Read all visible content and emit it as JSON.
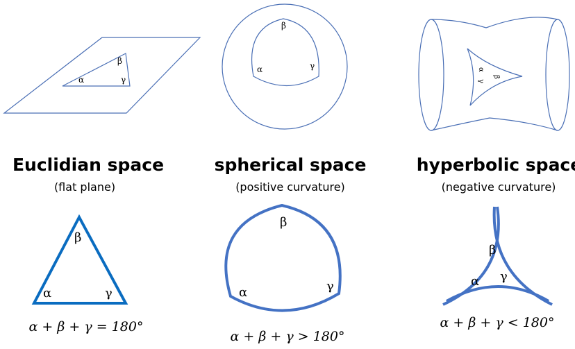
{
  "panels": {
    "euclidean": {
      "title": "Euclidian space",
      "subtitle": "(flat plane)",
      "angles": {
        "alpha": "α",
        "beta": "β",
        "gamma": "γ"
      },
      "formula": "α + β + γ = 180°"
    },
    "spherical": {
      "title": "spherical space",
      "subtitle": "(positive curvature)",
      "angles": {
        "alpha": "α",
        "beta": "β",
        "gamma": "γ"
      },
      "formula": "α + β + γ > 180°"
    },
    "hyperbolic": {
      "title": "hyperbolic space",
      "subtitle": "(negative curvature)",
      "angles": {
        "alpha": "α",
        "beta": "β",
        "gamma": "γ"
      },
      "formula": "α + β + γ < 180°"
    }
  },
  "colors": {
    "line": "#4472c4",
    "euclid_line": "#0a6cc0"
  }
}
